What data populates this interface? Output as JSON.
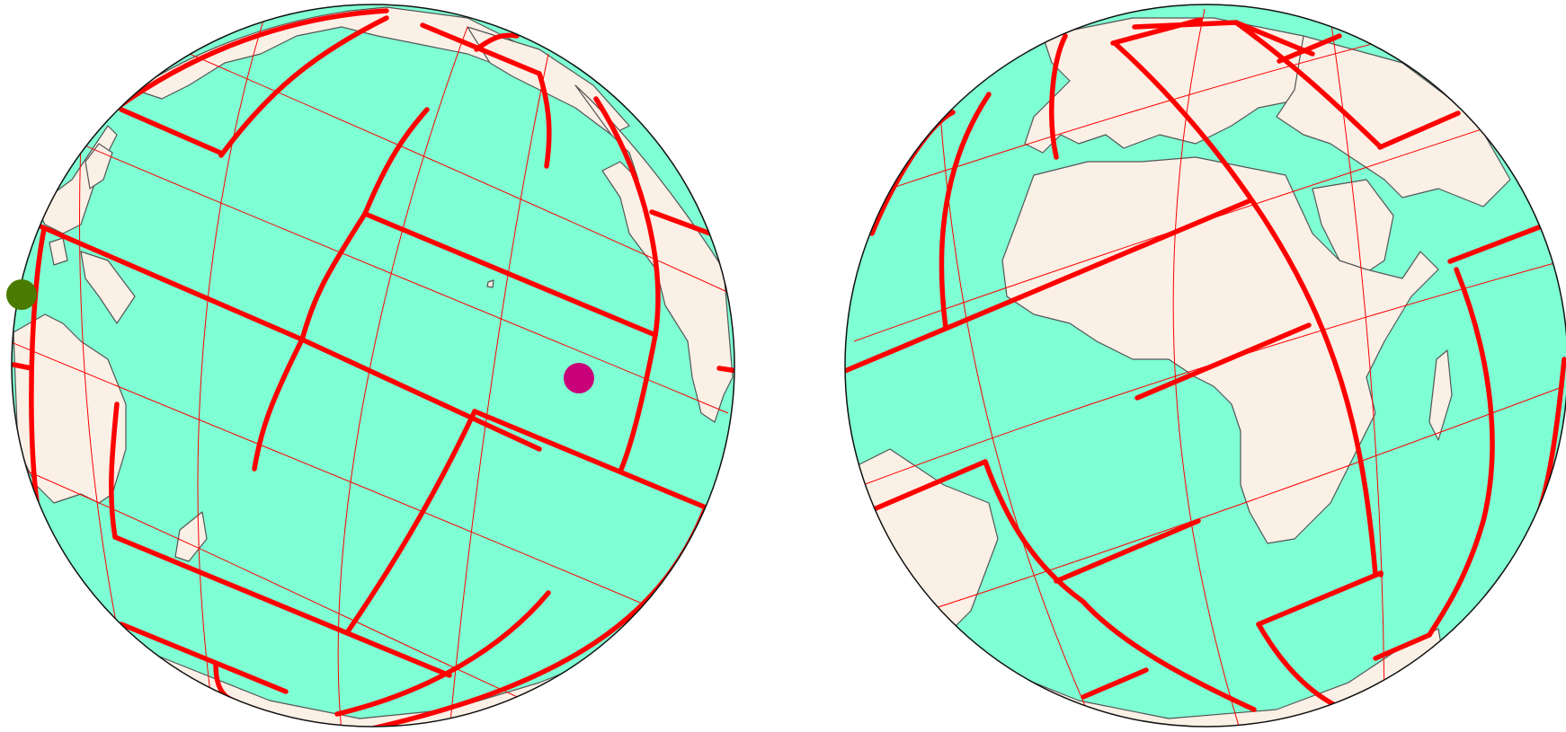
{
  "figure": {
    "background": "#ffffff",
    "ocean_color": "#7fffd4",
    "land_color": "#faf0e6",
    "border_color": "#555555",
    "grid_color": "#ff0000",
    "rim_color": "#111111"
  },
  "globes": [
    {
      "name": "pacific-hemisphere",
      "markers": [
        {
          "name": "green-marker",
          "color": "#4a7a00"
        },
        {
          "name": "magenta-marker",
          "color": "#c8007a"
        }
      ]
    },
    {
      "name": "atlantic-africa-hemisphere",
      "markers": []
    }
  ]
}
